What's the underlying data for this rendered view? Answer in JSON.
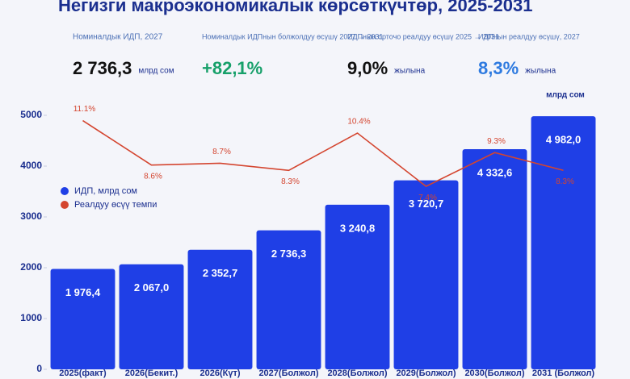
{
  "header": {
    "title": "Негизги макроэкономикалык көрсөткүчтөр, 2025-2031"
  },
  "kpis": [
    {
      "label": "Номиналдык ИДП, 2027",
      "value": "2 736,3",
      "unit": "млрд сом",
      "color": "#111111"
    },
    {
      "label": "Номиналдык ИДПнын болжолдуу өсүшү 2027 → 2031",
      "value": "+82,1%",
      "color": "#17a06a"
    },
    {
      "label": "ИДПнын орточо реалдуу өсүшү 2025 → 2031",
      "value": "9,0%",
      "unit": "жылына",
      "color": "#111111"
    },
    {
      "label": "ИДПнын реалдуу өсүшү, 2027",
      "value": "8,3%",
      "unit": "жылына",
      "color": "#2f7be0"
    }
  ],
  "chart_data": {
    "type": "bar",
    "ylabel": "млрд сом",
    "categories": [
      "2025(факт)",
      "2026(Бекит.)",
      "2026(Күт)",
      "2027(Болжол)",
      "2028(Болжол)",
      "2029(Болжол)",
      "2030(Болжол)",
      "2031 (Болжол)"
    ],
    "series": [
      {
        "name": "ИДП, млрд сом",
        "type": "bar",
        "color": "#1f3fe6",
        "values": [
          1976.4,
          2067.0,
          2352.7,
          2736.3,
          3240.8,
          3720.7,
          4332.6,
          4982.0
        ],
        "value_labels": [
          "1 976,4",
          "2 067,0",
          "2 352,7",
          "2 736,3",
          "3 240,8",
          "3 720,7",
          "4 332,6",
          "4 982,0"
        ]
      },
      {
        "name": "Реалдуу өсүү темпи",
        "type": "line",
        "axis": "y2",
        "color": "#d4452f",
        "values": [
          11.1,
          8.6,
          8.7,
          8.3,
          10.4,
          7.4,
          9.3,
          8.3
        ],
        "value_labels": [
          "11.1%",
          "8.6%",
          "8.7%",
          "8.3%",
          "10.4%",
          "7.4%",
          "9.3%",
          "8.3%"
        ]
      }
    ],
    "ylim": [
      0,
      5000
    ],
    "yticks": [
      0,
      1000,
      2000,
      3000,
      4000,
      5000
    ],
    "y2lim": [
      -2.9,
      11.4
    ]
  }
}
